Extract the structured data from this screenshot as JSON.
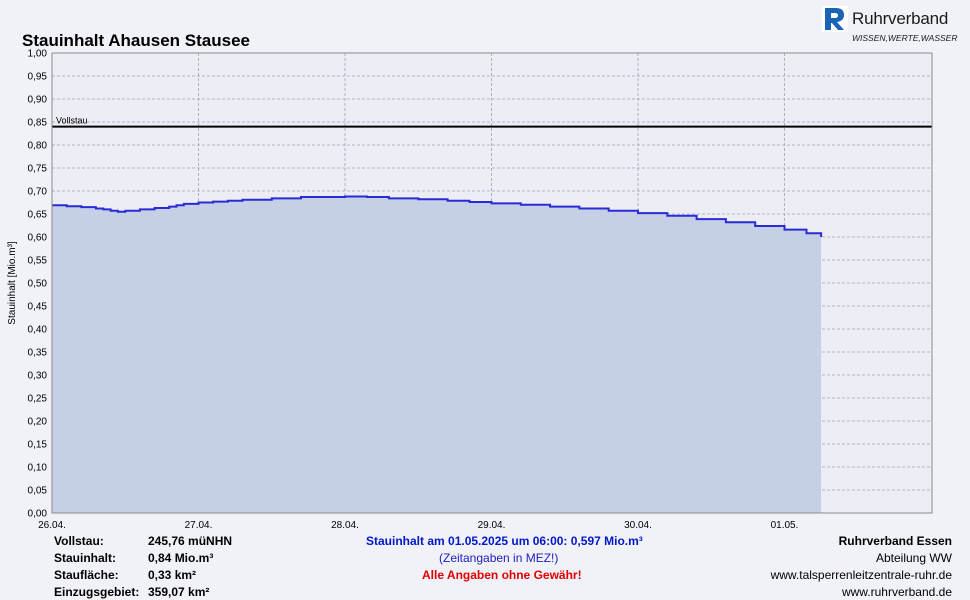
{
  "header": {
    "title": "Stauinhalt Ahausen Stausee",
    "logo_name": "Ruhrverband",
    "logo_slogan": "WISSEN,WERTE,WASSER"
  },
  "chart_data": {
    "type": "area",
    "title": "Stauinhalt Ahausen Stausee",
    "ylabel": "Stauinhalt [Mio.m³]",
    "xlabel": "",
    "ylim": [
      0,
      1.0
    ],
    "y_ticks": [
      "0,00",
      "0,05",
      "0,10",
      "0,15",
      "0,20",
      "0,25",
      "0,30",
      "0,35",
      "0,40",
      "0,45",
      "0,50",
      "0,55",
      "0,60",
      "0,65",
      "0,70",
      "0,75",
      "0,80",
      "0,85",
      "0,90",
      "0,95",
      "1,00"
    ],
    "x_ticks": [
      "26.04.",
      "27.04.",
      "28.04.",
      "29.04.",
      "30.04.",
      "01.05."
    ],
    "grid": true,
    "reference_line": {
      "label": "Vollstau",
      "value": 0.84,
      "color": "#000000"
    },
    "series": [
      {
        "color": "#2b2bd6",
        "fill": "#c5d0e6",
        "x": [
          0,
          0.1,
          0.2,
          0.3,
          0.35,
          0.4,
          0.45,
          0.5,
          0.6,
          0.7,
          0.8,
          0.85,
          0.9,
          1.0,
          1.1,
          1.2,
          1.3,
          1.5,
          1.7,
          2.0,
          2.15,
          2.3,
          2.5,
          2.7,
          2.85,
          3.0,
          3.2,
          3.4,
          3.6,
          3.8,
          4.0,
          4.2,
          4.4,
          4.6,
          4.8,
          5.0,
          5.15,
          5.25
        ],
        "values": [
          0.669,
          0.667,
          0.665,
          0.662,
          0.66,
          0.657,
          0.655,
          0.657,
          0.66,
          0.663,
          0.666,
          0.669,
          0.672,
          0.675,
          0.677,
          0.679,
          0.681,
          0.684,
          0.687,
          0.688,
          0.687,
          0.684,
          0.682,
          0.679,
          0.676,
          0.673,
          0.67,
          0.666,
          0.662,
          0.657,
          0.652,
          0.646,
          0.639,
          0.632,
          0.624,
          0.616,
          0.608,
          0.6
        ]
      }
    ]
  },
  "footer": {
    "vollstau_label": "Vollstau:",
    "vollstau_value": "245,76 müNHN",
    "stauinhalt_label": "Stauinhalt:",
    "stauinhalt_value": "0,84 Mio.m³",
    "stauflaeche_label": "Staufläche:",
    "stauflaeche_value": "0,33 km²",
    "einzugsgebiet_label": "Einzugsgebiet:",
    "einzugsgebiet_value": "359,07 km²",
    "current": "Stauinhalt am 01.05.2025 um 06:00:  0,597 Mio.m³",
    "time_note": "(Zeitangaben in MEZ!)",
    "disclaimer": "Alle Angaben ohne Gewähr!",
    "org": "Ruhrverband Essen",
    "dept": "Abteilung WW",
    "url1": "www.talsperrenleitzentrale-ruhr.de",
    "url2": "www.ruhrverband.de"
  },
  "colors": {
    "background": "#f1f1f8",
    "plot_background": "#ededf5",
    "area_fill": "#c5d0e6",
    "line": "#2b2bd6"
  }
}
